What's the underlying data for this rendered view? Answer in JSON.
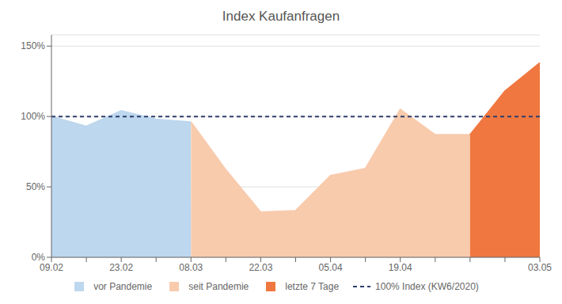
{
  "chart_data": {
    "type": "area",
    "title": "Index Kaufanfragen",
    "categories": [
      "09.02",
      null,
      "23.02",
      null,
      "08.03",
      null,
      "22.03",
      null,
      "05.04",
      null,
      "19.04",
      null,
      null,
      null,
      "03.05"
    ],
    "series": [
      {
        "name": "vor Pandemie",
        "type": "area",
        "color": "#bdd7ee",
        "values": [
          1.0,
          0.93,
          1.04,
          0.98,
          0.96,
          null,
          null,
          null,
          null,
          null,
          null,
          null,
          null,
          null,
          null
        ]
      },
      {
        "name": "seit Pandemie",
        "type": "area",
        "color": "#f8cbad",
        "values": [
          null,
          null,
          null,
          null,
          0.96,
          0.62,
          0.32,
          0.33,
          0.58,
          0.63,
          1.05,
          0.87,
          0.87,
          null,
          null
        ]
      },
      {
        "name": "letzte 7 Tage",
        "type": "area",
        "color": "#f07840",
        "values": [
          null,
          null,
          null,
          null,
          null,
          null,
          null,
          null,
          null,
          null,
          null,
          null,
          0.87,
          1.18,
          1.38
        ]
      },
      {
        "name": "100% Index (KW6/2020)",
        "type": "line",
        "line_style": "dashed",
        "color": "#2e3f6e",
        "values": [
          1.0,
          1.0,
          1.0,
          1.0,
          1.0,
          1.0,
          1.0,
          1.0,
          1.0,
          1.0,
          1.0,
          1.0,
          1.0,
          1.0,
          1.0
        ]
      }
    ],
    "ylim": [
      0.0,
      1.58
    ],
    "yticks": [
      {
        "value": 0.0,
        "label": "0%"
      },
      {
        "value": 0.5,
        "label": "50%"
      },
      {
        "value": 1.0,
        "label": "100%"
      },
      {
        "value": 1.5,
        "label": "150%"
      }
    ],
    "grid": true
  }
}
